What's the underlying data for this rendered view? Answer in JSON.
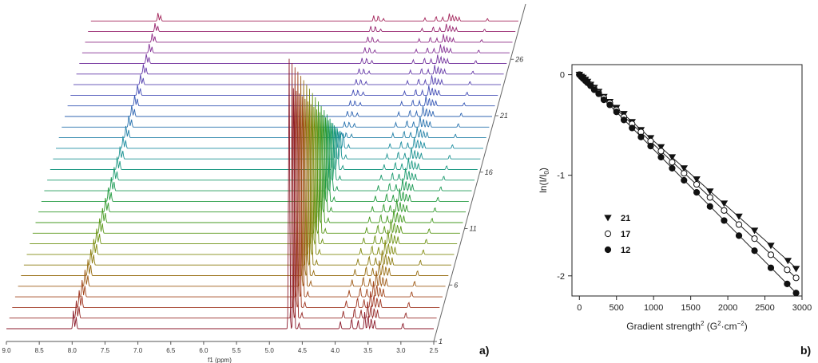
{
  "panel_a": {
    "label": "a)",
    "xlabel": "f1 (ppm)",
    "x_ticks": [
      "9.0",
      "8.5",
      "8.0",
      "7.5",
      "7.0",
      "6.5",
      "6.0",
      "5.5",
      "5.0",
      "4.5",
      "4.0",
      "3.5",
      "3.0",
      "2.5"
    ],
    "depth_labels": [
      "1",
      "6",
      "11",
      "16",
      "21",
      "26"
    ]
  },
  "panel_b": {
    "label": "b)",
    "xlabel_main": "Gradient strength",
    "xlabel_sup": "2",
    "xlabel_unit_pre": " (G",
    "xlabel_unit_sup1": "2",
    "xlabel_unit_mid": "·cm",
    "xlabel_unit_sup2": "−2",
    "xlabel_unit_post": ")",
    "ylabel_pre": "ln(I/I",
    "ylabel_sub": "0",
    "ylabel_post": ")",
    "x_ticks": [
      "0",
      "500",
      "1000",
      "1500",
      "2000",
      "2500",
      "3000"
    ],
    "y_ticks": [
      "0",
      "-1",
      "-2"
    ]
  },
  "chart_data": [
    {
      "type": "line",
      "description_kind": "stacked DOSY NMR spectra",
      "xlabel": "f1 (ppm)",
      "xlim": [
        9.0,
        2.5
      ],
      "x_reversed": true,
      "spectrum_count": 30,
      "labelled_experiments": [
        1,
        6,
        11,
        16,
        21,
        26
      ],
      "peaks_ppm": [
        {
          "ppm": 7.98,
          "rel_height": 0.38
        },
        {
          "ppm": 7.94,
          "rel_height": 0.25
        },
        {
          "ppm": 4.7,
          "rel_height": 1.0
        },
        {
          "ppm": 4.63,
          "rel_height": 0.35
        },
        {
          "ppm": 4.55,
          "rel_height": 0.12
        },
        {
          "ppm": 3.92,
          "rel_height": 0.15
        },
        {
          "ppm": 3.75,
          "rel_height": 0.22
        },
        {
          "ppm": 3.65,
          "rel_height": 0.18
        },
        {
          "ppm": 3.55,
          "rel_height": 0.35
        },
        {
          "ppm": 3.5,
          "rel_height": 0.28
        },
        {
          "ppm": 3.45,
          "rel_height": 0.22
        },
        {
          "ppm": 3.4,
          "rel_height": 0.18
        },
        {
          "ppm": 2.97,
          "rel_height": 0.12
        }
      ],
      "colors": [
        "#8b1a2b",
        "#a33b1f",
        "#9a6a12",
        "#7f8f10",
        "#4c9a1c",
        "#1f9a3f",
        "#1a9a7a",
        "#1f8fa0",
        "#2a6fb0",
        "#3f4fb8",
        "#6a3aa8",
        "#8b2e8f",
        "#a3245a"
      ]
    },
    {
      "type": "scatter",
      "xlabel": "Gradient strength² (G²·cm⁻²)",
      "ylabel": "ln(I/I₀)",
      "xlim": [
        -100,
        3000
      ],
      "ylim": [
        -2.2,
        0.1
      ],
      "legend_position": "lower-left",
      "series": [
        {
          "name": "21",
          "marker": "filled-down-triangle",
          "slope": -0.000658,
          "points": [
            [
              0,
              0
            ],
            [
              25,
              -0.02
            ],
            [
              50,
              -0.03
            ],
            [
              80,
              -0.05
            ],
            [
              110,
              -0.07
            ],
            [
              150,
              -0.1
            ],
            [
              200,
              -0.13
            ],
            [
              260,
              -0.17
            ],
            [
              330,
              -0.22
            ],
            [
              410,
              -0.27
            ],
            [
              500,
              -0.33
            ],
            [
              600,
              -0.39
            ],
            [
              710,
              -0.47
            ],
            [
              830,
              -0.55
            ],
            [
              960,
              -0.63
            ],
            [
              1100,
              -0.72
            ],
            [
              1250,
              -0.82
            ],
            [
              1410,
              -0.93
            ],
            [
              1580,
              -1.04
            ],
            [
              1760,
              -1.16
            ],
            [
              1950,
              -1.28
            ],
            [
              2150,
              -1.41
            ],
            [
              2360,
              -1.55
            ],
            [
              2580,
              -1.7
            ],
            [
              2810,
              -1.85
            ],
            [
              2920,
              -1.93
            ]
          ]
        },
        {
          "name": "17",
          "marker": "open-circle",
          "slope": -0.000692,
          "points": [
            [
              0,
              0
            ],
            [
              25,
              -0.02
            ],
            [
              50,
              -0.03
            ],
            [
              80,
              -0.05
            ],
            [
              110,
              -0.08
            ],
            [
              150,
              -0.1
            ],
            [
              200,
              -0.14
            ],
            [
              260,
              -0.18
            ],
            [
              330,
              -0.23
            ],
            [
              410,
              -0.28
            ],
            [
              500,
              -0.35
            ],
            [
              600,
              -0.42
            ],
            [
              710,
              -0.49
            ],
            [
              830,
              -0.57
            ],
            [
              960,
              -0.66
            ],
            [
              1100,
              -0.76
            ],
            [
              1250,
              -0.87
            ],
            [
              1410,
              -0.98
            ],
            [
              1580,
              -1.09
            ],
            [
              1760,
              -1.22
            ],
            [
              1950,
              -1.35
            ],
            [
              2150,
              -1.49
            ],
            [
              2360,
              -1.63
            ],
            [
              2580,
              -1.79
            ],
            [
              2800,
              -1.94
            ],
            [
              2920,
              -2.02
            ]
          ]
        },
        {
          "name": "12",
          "marker": "filled-circle",
          "slope": -0.000743,
          "points": [
            [
              0,
              0
            ],
            [
              25,
              -0.02
            ],
            [
              50,
              -0.04
            ],
            [
              80,
              -0.06
            ],
            [
              110,
              -0.08
            ],
            [
              150,
              -0.11
            ],
            [
              200,
              -0.15
            ],
            [
              260,
              -0.19
            ],
            [
              330,
              -0.25
            ],
            [
              410,
              -0.3
            ],
            [
              500,
              -0.37
            ],
            [
              600,
              -0.45
            ],
            [
              710,
              -0.53
            ],
            [
              830,
              -0.62
            ],
            [
              960,
              -0.71
            ],
            [
              1100,
              -0.82
            ],
            [
              1250,
              -0.93
            ],
            [
              1410,
              -1.05
            ],
            [
              1580,
              -1.17
            ],
            [
              1760,
              -1.31
            ],
            [
              1950,
              -1.45
            ],
            [
              2150,
              -1.6
            ],
            [
              2360,
              -1.75
            ],
            [
              2580,
              -1.92
            ],
            [
              2800,
              -2.08
            ],
            [
              2920,
              -2.17
            ]
          ]
        }
      ]
    }
  ]
}
